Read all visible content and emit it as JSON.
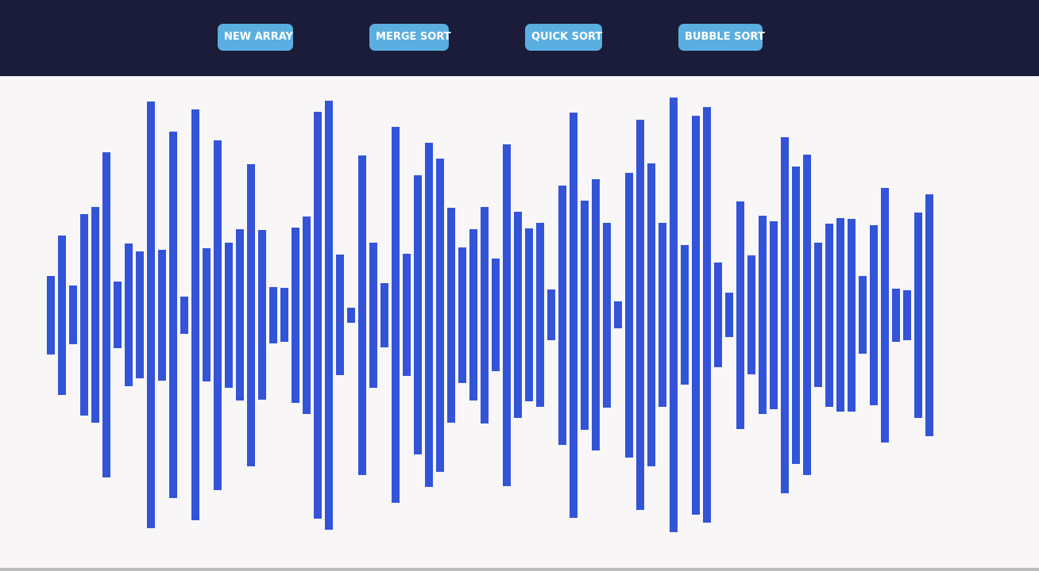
{
  "colors": {
    "header_bg": "#1a1c39",
    "button_bg": "#5aaee0",
    "button_text": "#ffffff",
    "canvas_bg": "#f8f6f7",
    "bar": "#3354d8"
  },
  "toolbar": {
    "new_array_label": "NEW ARRAY",
    "merge_sort_label": "MERGE SORT",
    "quick_sort_label": "QUICK SORT",
    "bubble_sort_label": "BUBBLE SORT"
  },
  "array": {
    "values": [
      99,
      201,
      74,
      254,
      272,
      410,
      84,
      180,
      160,
      538,
      165,
      462,
      47,
      518,
      168,
      441,
      183,
      216,
      381,
      214,
      71,
      68,
      221,
      249,
      513,
      541,
      152,
      19,
      403,
      183,
      81,
      474,
      154,
      352,
      434,
      395,
      271,
      171,
      216,
      273,
      142,
      431,
      260,
      218,
      232,
      64,
      327,
      511,
      289,
      342,
      233,
      34,
      359,
      492,
      382,
      232,
      548,
      176,
      503,
      524,
      132,
      56,
      287,
      150,
      250,
      237,
      449,
      375,
      404,
      182,
      231,
      244,
      243,
      98,
      227,
      321,
      67,
      63,
      259,
      305
    ]
  }
}
